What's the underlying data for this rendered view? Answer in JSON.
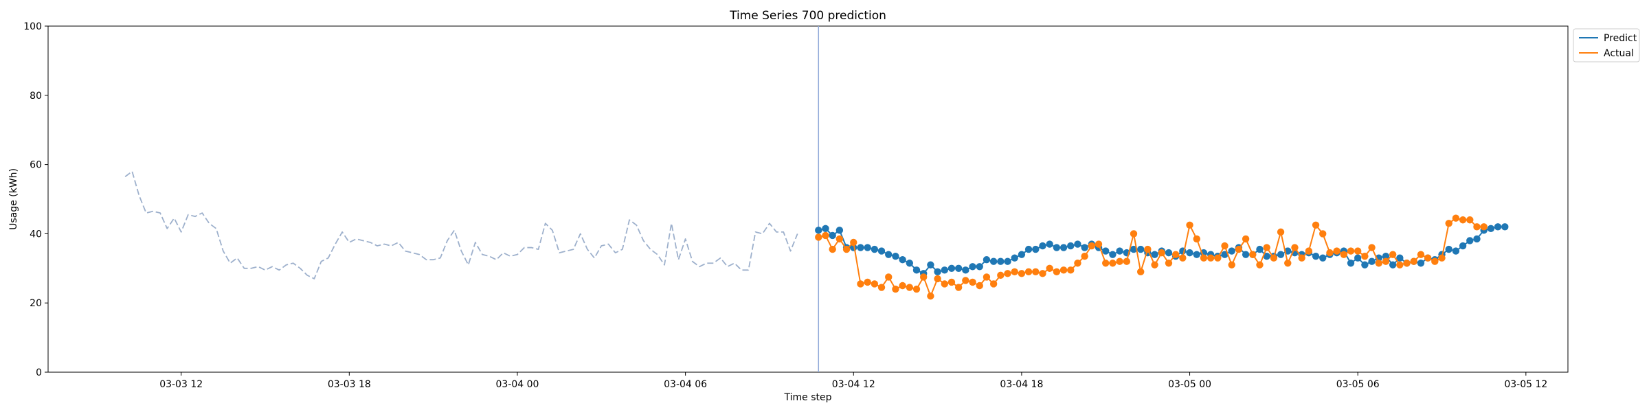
{
  "chart_data": {
    "type": "line",
    "title": "Time Series 700 prediction",
    "xlabel": "Time step",
    "ylabel": "Usage (kWh)",
    "ylim": [
      0,
      100
    ],
    "xlim": [
      "2023-03-03 07:15",
      "2023-03-05 13:30"
    ],
    "yticks": [
      0,
      20,
      40,
      60,
      80,
      100
    ],
    "xticks": [
      {
        "t": "2023-03-03 12:00",
        "label": "03-03 12"
      },
      {
        "t": "2023-03-03 18:00",
        "label": "03-03 18"
      },
      {
        "t": "2023-03-04 00:00",
        "label": "03-04 00"
      },
      {
        "t": "2023-03-04 06:00",
        "label": "03-04 06"
      },
      {
        "t": "2023-03-04 12:00",
        "label": "03-04 12"
      },
      {
        "t": "2023-03-04 18:00",
        "label": "03-04 18"
      },
      {
        "t": "2023-03-05 00:00",
        "label": "03-05 00"
      },
      {
        "t": "2023-03-05 06:00",
        "label": "03-05 06"
      },
      {
        "t": "2023-03-05 12:00",
        "label": "03-05 12"
      }
    ],
    "grid": false,
    "legend_position": "upper-right-outside",
    "forecast_start": "2023-03-04 10:45",
    "series": [
      {
        "name": "",
        "style": "dashed",
        "color": "#9db0cc",
        "start": "2023-03-03 10:00",
        "step_minutes": 15,
        "values": [
          56.5,
          58,
          51,
          46,
          46.5,
          46,
          41.5,
          44.5,
          40.5,
          45.5,
          45,
          46,
          43,
          41.5,
          35,
          31.5,
          33,
          30,
          30,
          30.5,
          29.5,
          30.5,
          29.5,
          31,
          31.5,
          30,
          28,
          27,
          32,
          33,
          37,
          40.5,
          37.5,
          38.5,
          38,
          37.5,
          36.5,
          37,
          36.5,
          37.5,
          35,
          34.5,
          34,
          32.5,
          32.5,
          33,
          38,
          41,
          35,
          31,
          37.5,
          34,
          33.5,
          32.5,
          34.5,
          33.5,
          34,
          36,
          36,
          35.5,
          43,
          41,
          34.5,
          35,
          35.5,
          40,
          35.5,
          33,
          36.5,
          37,
          34.5,
          35.5,
          44,
          42.5,
          38,
          35.5,
          34,
          31,
          43,
          32.5,
          38.5,
          32,
          30.5,
          31.5,
          31.5,
          33,
          30.5,
          31.5,
          29.5,
          29.5,
          40.5,
          40,
          43,
          40.5,
          40.5,
          35,
          40
        ]
      },
      {
        "name": "Predict",
        "style": "solid-markers",
        "color": "#1f77b4",
        "start": "2023-03-04 10:45",
        "step_minutes": 15,
        "values": [
          41,
          41.5,
          39.5,
          41,
          36,
          36,
          36,
          36,
          35.5,
          35,
          34,
          33.5,
          32.5,
          31.5,
          29.5,
          28.5,
          31,
          29,
          29.5,
          30,
          30,
          29.5,
          30.5,
          30.5,
          32.5,
          32,
          32,
          32,
          33,
          34,
          35.5,
          35.5,
          36.5,
          37,
          36,
          36,
          36.5,
          37,
          36,
          37,
          36,
          35,
          34,
          35,
          34.5,
          35.5,
          35.5,
          34.5,
          34,
          35,
          34.5,
          33.5,
          35,
          34.5,
          34,
          34.5,
          34,
          33.5,
          34,
          35,
          36,
          34,
          34,
          35.5,
          33.5,
          33.5,
          34,
          35,
          34.5,
          34,
          34.5,
          33.5,
          33,
          34,
          34.5,
          35,
          31.5,
          33,
          31,
          32,
          33,
          33.5,
          31,
          33,
          31.5,
          32,
          31.5,
          33,
          32.5,
          34,
          35.5,
          35,
          36.5,
          38,
          38.5,
          41,
          41.5,
          42,
          42
        ]
      },
      {
        "name": "Actual",
        "style": "solid-markers",
        "color": "#ff7f0e",
        "start": "2023-03-04 10:45",
        "step_minutes": 15,
        "values": [
          39,
          39.5,
          35.5,
          38.5,
          35.5,
          37.5,
          25.5,
          26,
          25.5,
          24.5,
          27.5,
          24,
          25,
          24.5,
          24,
          27.5,
          22,
          27,
          25.5,
          26,
          24.5,
          26.5,
          26,
          25,
          27.5,
          25.5,
          28,
          28.5,
          29,
          28.5,
          29,
          29,
          28.5,
          30,
          29,
          29.5,
          29.5,
          31.5,
          33.5,
          36.5,
          37,
          31.5,
          31.5,
          32,
          32,
          40,
          29,
          35.5,
          31,
          34.5,
          31.5,
          34,
          33,
          42.5,
          38.5,
          33,
          33,
          33,
          36.5,
          31,
          35.5,
          38.5,
          34,
          31,
          36,
          33,
          40.5,
          31.5,
          36,
          33,
          35,
          42.5,
          40,
          34.5,
          35,
          34,
          35,
          35,
          33.5,
          36,
          31.5,
          32,
          34,
          31,
          31.5,
          32,
          34,
          33,
          32,
          33,
          43,
          44.5,
          44,
          44,
          42,
          42
        ]
      }
    ]
  }
}
